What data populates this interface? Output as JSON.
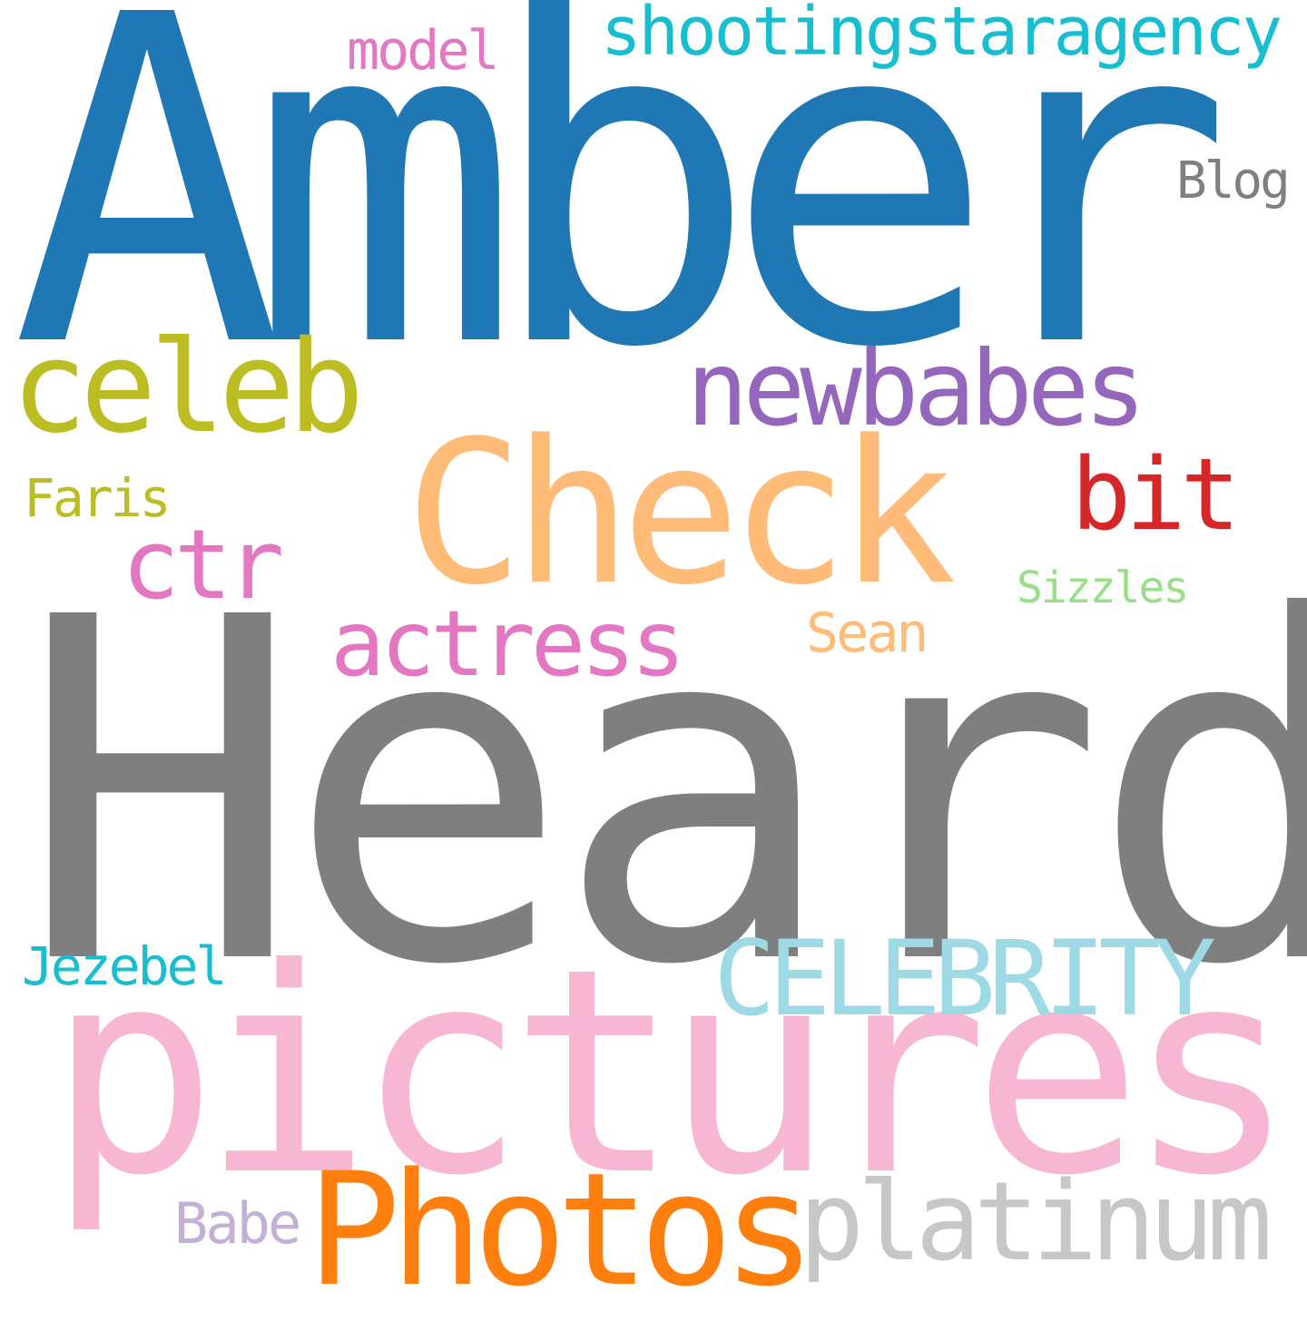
{
  "word_cloud": {
    "background": "#ffffff",
    "words": [
      {
        "text": "Amber",
        "color": "#1f77b4"
      },
      {
        "text": "Heard",
        "color": "#7f7f7f"
      },
      {
        "text": "pictures",
        "color": "#f7b6d2"
      },
      {
        "text": "Check",
        "color": "#ffbb78"
      },
      {
        "text": "Photos",
        "color": "#ff7f0e"
      },
      {
        "text": "platinum",
        "color": "#c7c7c7"
      },
      {
        "text": "celeb",
        "color": "#bcbd22"
      },
      {
        "text": "newbabes",
        "color": "#9467bd"
      },
      {
        "text": "CELEBRITY",
        "color": "#9edae5"
      },
      {
        "text": "actress",
        "color": "#e377c2"
      },
      {
        "text": "ctr",
        "color": "#e377c2"
      },
      {
        "text": "bit",
        "color": "#d62728"
      },
      {
        "text": "shootingstaragency",
        "color": "#17becf"
      },
      {
        "text": "model",
        "color": "#e377c2"
      },
      {
        "text": "Blog",
        "color": "#7f7f7f"
      },
      {
        "text": "Faris",
        "color": "#bcbd22"
      },
      {
        "text": "Sizzles",
        "color": "#98df8a"
      },
      {
        "text": "Sean",
        "color": "#ffbb78"
      },
      {
        "text": "Jezebel",
        "color": "#17becf"
      },
      {
        "text": "Babe",
        "color": "#c5b0d5"
      }
    ]
  }
}
